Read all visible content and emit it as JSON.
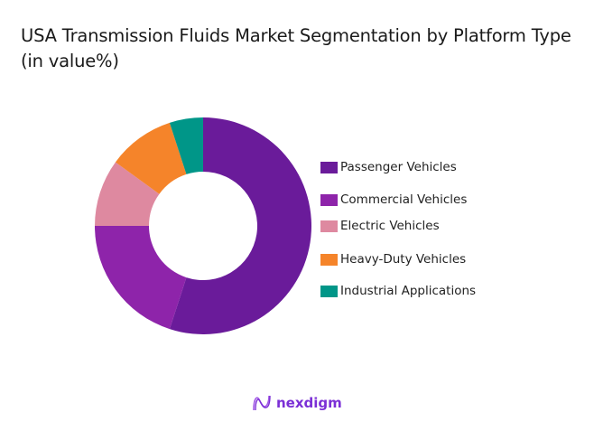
{
  "title": "USA Transmission Fluids Market Segmentation by Platform Type (in value%)",
  "chart_data": {
    "type": "pie",
    "variant": "donut",
    "title": "USA Transmission Fluids Market Segmentation by Platform Type (in value%)",
    "categories": [
      "Passenger Vehicles",
      "Commercial Vehicles",
      "Electric Vehicles",
      "Heavy-Duty Vehicles",
      "Industrial Applications"
    ],
    "values": [
      55,
      20,
      10,
      10,
      5
    ],
    "colors": [
      "#6a1b9a",
      "#8e24aa",
      "#de89a0",
      "#f5842a",
      "#009688"
    ],
    "start_angle": "top, clockwise",
    "legend_position": "right",
    "data_labels": false
  },
  "legend": {
    "items": [
      {
        "label": "Passenger Vehicles",
        "color": "#6a1b9a"
      },
      {
        "label": "Commercial Vehicles",
        "color": "#8e24aa"
      },
      {
        "label": "Electric Vehicles",
        "color": "#de89a0"
      },
      {
        "label": "Heavy-Duty Vehicles",
        "color": "#f5842a"
      },
      {
        "label": "Industrial Applications",
        "color": "#009688"
      }
    ]
  },
  "brand": {
    "name": "nexdigm",
    "color": "#7b2fd6",
    "icon": "nexdigm-wave-logo-icon"
  }
}
